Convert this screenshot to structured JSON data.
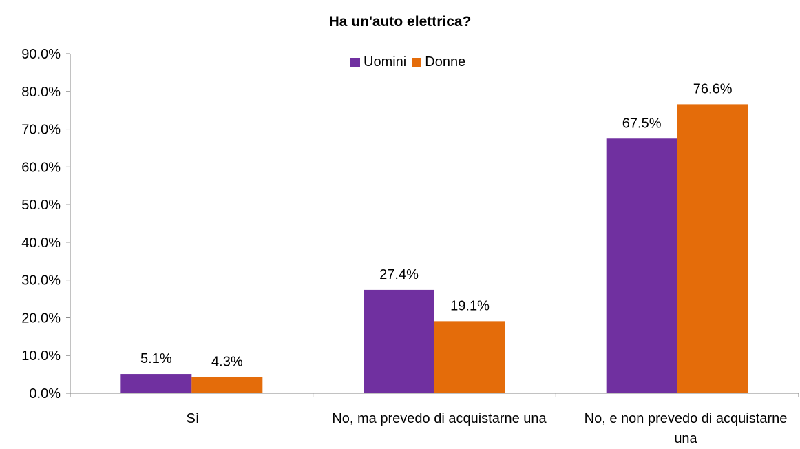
{
  "chart_data": {
    "type": "bar",
    "title": "Ha un'auto elettrica?",
    "xlabel": "",
    "ylabel": "",
    "categories": [
      "Sì",
      "No, ma prevedo di acquistarne una",
      "No, e non prevedo di acquistarne una"
    ],
    "series": [
      {
        "name": "Uomini",
        "values": [
          5.1,
          27.4,
          67.5
        ],
        "labels": [
          "5.1%",
          "27.4%",
          "67.5%"
        ],
        "color": "#7030a0"
      },
      {
        "name": "Donne",
        "values": [
          4.3,
          19.1,
          76.6
        ],
        "labels": [
          "4.3%",
          "19.1%",
          "76.6%"
        ],
        "color": "#e46c0a"
      }
    ],
    "ylim": [
      0,
      90
    ],
    "yticks": [
      "0.0%",
      "10.0%",
      "20.0%",
      "30.0%",
      "40.0%",
      "50.0%",
      "60.0%",
      "70.0%",
      "80.0%",
      "90.0%"
    ],
    "grid": false,
    "legend_position": "top-center"
  }
}
